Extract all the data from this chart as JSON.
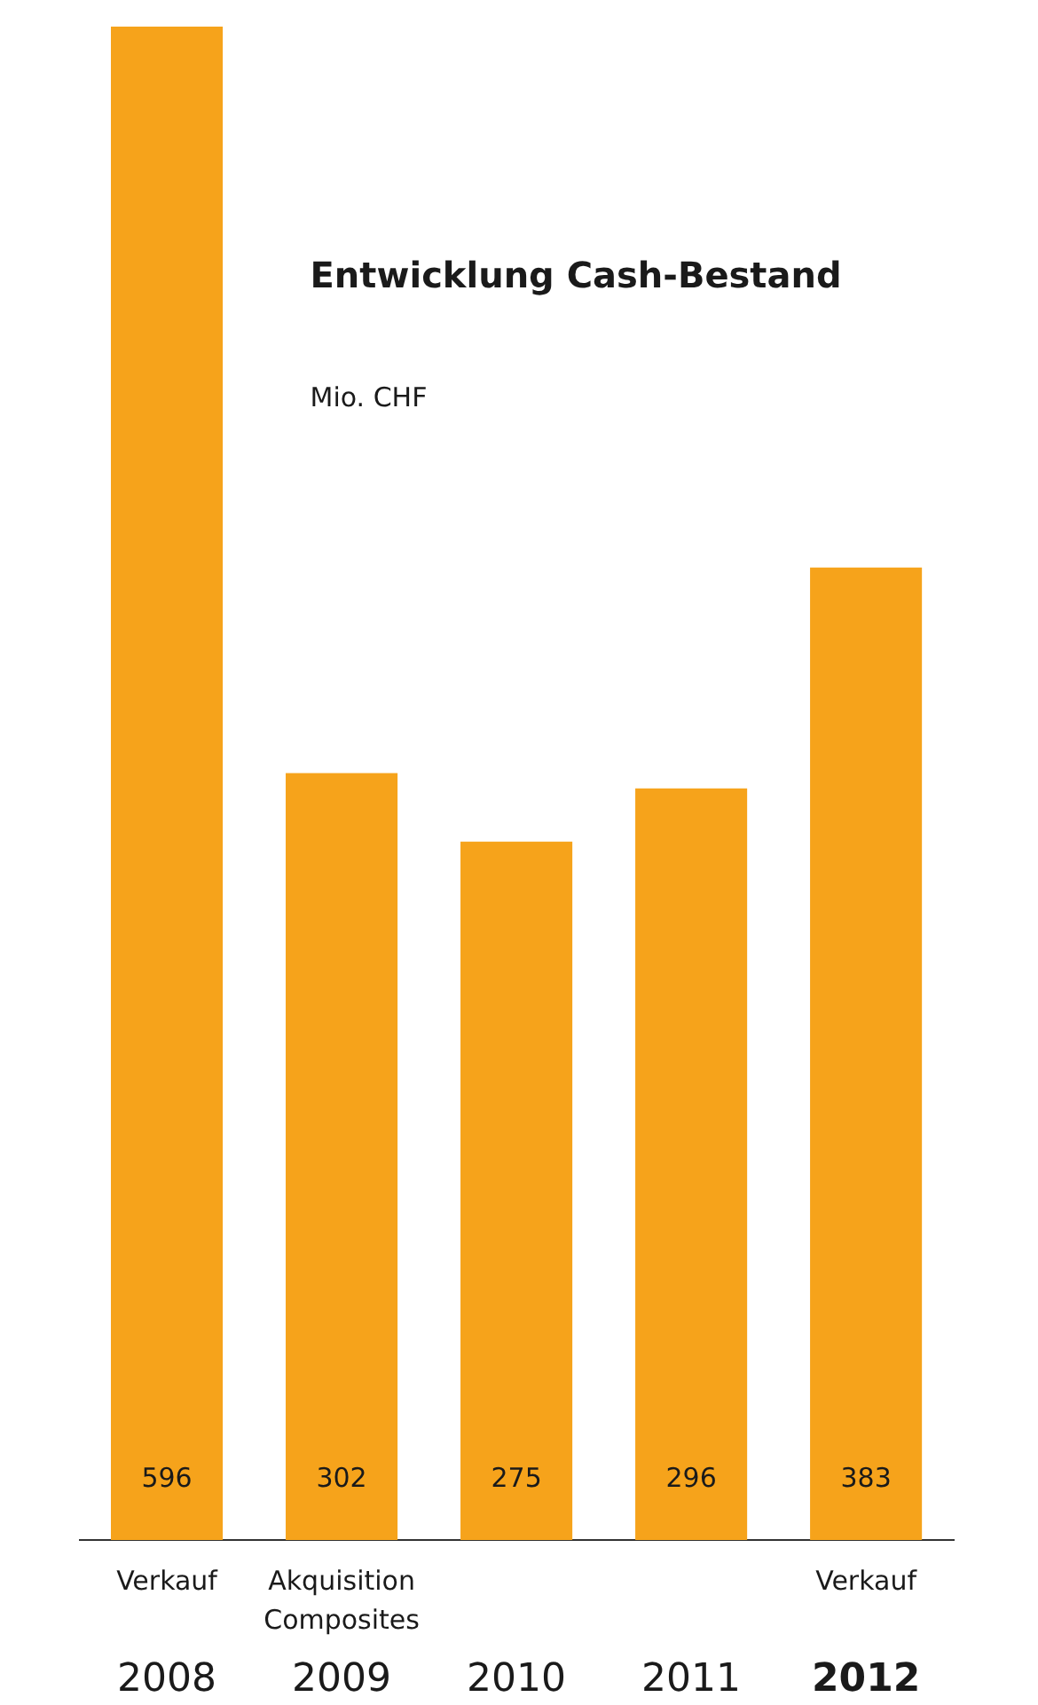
{
  "chart_data": {
    "type": "bar",
    "title": "Entwicklung Cash-Bestand",
    "subtitle": "Mio. CHF",
    "categories": [
      "2008",
      "2009",
      "2010",
      "2011",
      "2012"
    ],
    "values": [
      596,
      302,
      275,
      296,
      383
    ],
    "color": "#f6a31b",
    "data_labels": true,
    "tick_labels": "x",
    "grid": false,
    "legend": false,
    "annotations": [
      "Verkauf",
      "Akquisition Composites",
      "Verkauf"
    ]
  }
}
